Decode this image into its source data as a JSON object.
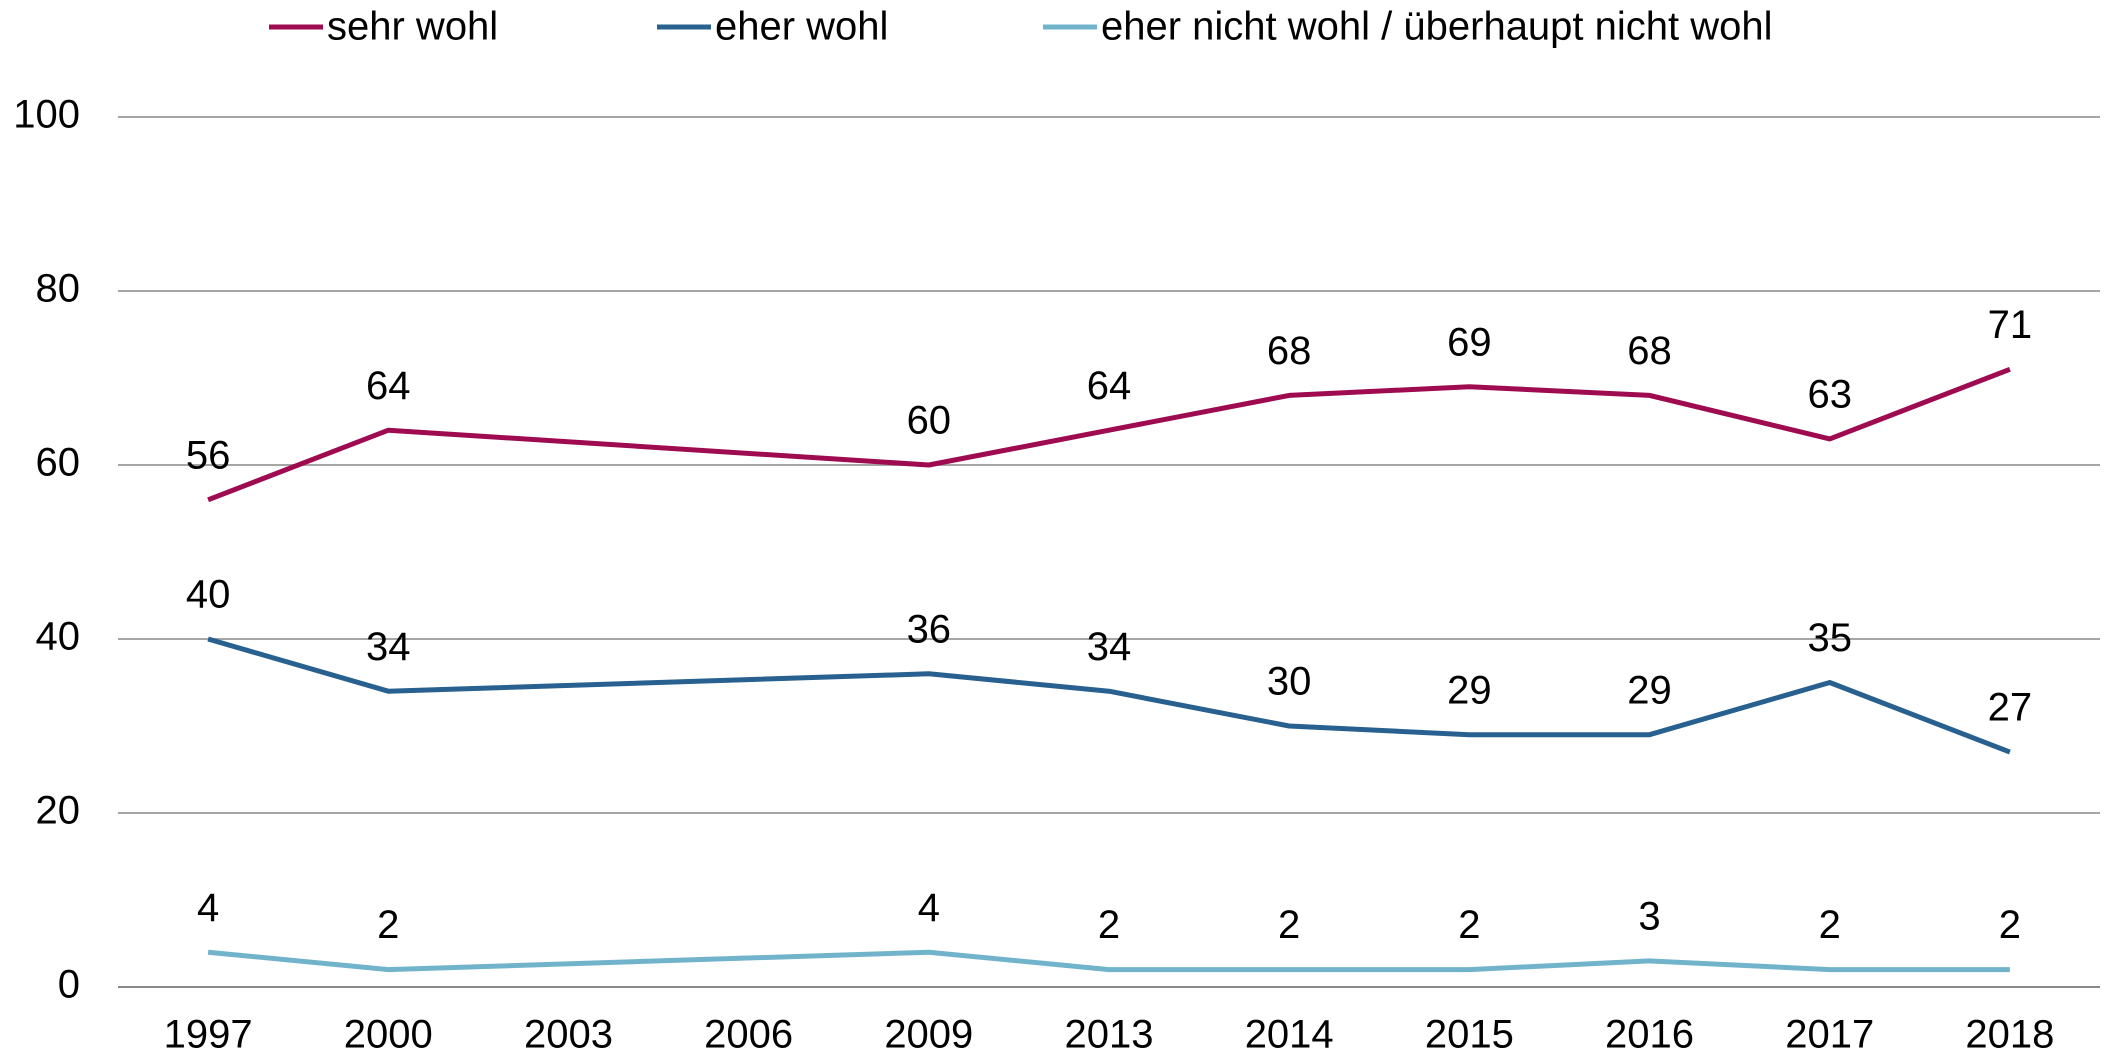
{
  "chart_data": {
    "type": "line",
    "categories": [
      "1997",
      "2000",
      "2003",
      "2006",
      "2009",
      "2013",
      "2014",
      "2015",
      "2016",
      "2017",
      "2018"
    ],
    "series": [
      {
        "name": "sehr wohl",
        "color": "#9e0b50",
        "values": [
          56,
          64,
          null,
          null,
          60,
          64,
          68,
          69,
          68,
          63,
          71
        ]
      },
      {
        "name": "eher wohl",
        "color": "#28608f",
        "values": [
          40,
          34,
          null,
          null,
          36,
          34,
          30,
          29,
          29,
          35,
          27
        ]
      },
      {
        "name": "eher nicht wohl / überhaupt nicht wohl",
        "color": "#72b3cc",
        "values": [
          4,
          2,
          null,
          null,
          4,
          2,
          2,
          2,
          3,
          2,
          2
        ]
      }
    ],
    "ylim": [
      0,
      100
    ],
    "yticks": [
      0,
      20,
      40,
      60,
      80,
      100
    ],
    "grid": true,
    "legend": "top",
    "span_gaps": true,
    "data_labels": true
  }
}
